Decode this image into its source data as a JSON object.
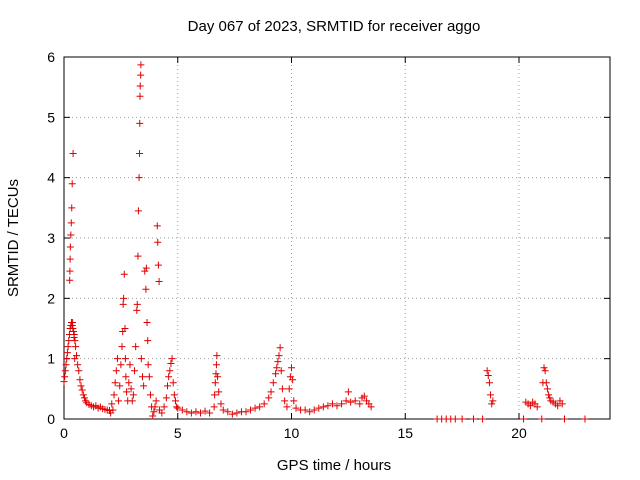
{
  "chart_data": {
    "type": "scatter",
    "title": "Day 067 of 2023, SRMTID for receiver aggo",
    "xlabel": "GPS time / hours",
    "ylabel": "SRMTID / TECUs",
    "xlim": [
      0,
      24
    ],
    "ylim": [
      0,
      6
    ],
    "xticks": [
      0,
      5,
      10,
      15,
      20
    ],
    "yticks": [
      0,
      1,
      2,
      3,
      4,
      5,
      6
    ],
    "grid": true,
    "marker": "+",
    "color": "#e00000",
    "series": [
      {
        "name": "SRMTID",
        "points": [
          [
            0.0,
            0.62
          ],
          [
            0.03,
            0.7
          ],
          [
            0.06,
            0.8
          ],
          [
            0.09,
            0.9
          ],
          [
            0.12,
            1.0
          ],
          [
            0.15,
            1.1
          ],
          [
            0.18,
            1.2
          ],
          [
            0.21,
            1.3
          ],
          [
            0.24,
            1.4
          ],
          [
            0.27,
            1.5
          ],
          [
            0.3,
            1.55
          ],
          [
            0.33,
            1.6
          ],
          [
            0.36,
            1.55
          ],
          [
            0.39,
            1.5
          ],
          [
            0.42,
            1.45
          ],
          [
            0.45,
            1.4
          ],
          [
            0.48,
            1.3
          ],
          [
            0.51,
            1.2
          ],
          [
            0.55,
            1.05
          ],
          [
            0.6,
            0.9
          ],
          [
            0.65,
            0.8
          ],
          [
            0.7,
            0.65
          ],
          [
            0.75,
            0.55
          ],
          [
            0.8,
            0.48
          ],
          [
            0.85,
            0.4
          ],
          [
            0.9,
            0.35
          ],
          [
            0.95,
            0.3
          ],
          [
            1.0,
            0.27
          ],
          [
            1.1,
            0.24
          ],
          [
            1.2,
            0.22
          ],
          [
            1.3,
            0.2
          ],
          [
            1.4,
            0.22
          ],
          [
            1.5,
            0.18
          ],
          [
            1.6,
            0.2
          ],
          [
            1.7,
            0.17
          ],
          [
            1.8,
            0.16
          ],
          [
            1.9,
            0.15
          ],
          [
            2.0,
            0.14
          ],
          [
            0.25,
            2.3
          ],
          [
            0.26,
            2.45
          ],
          [
            0.27,
            2.65
          ],
          [
            0.28,
            2.85
          ],
          [
            0.3,
            3.05
          ],
          [
            0.32,
            3.25
          ],
          [
            0.34,
            3.5
          ],
          [
            0.36,
            3.9
          ],
          [
            0.4,
            4.4
          ],
          [
            0.38,
            1.6
          ],
          [
            0.44,
            1.35
          ],
          [
            0.47,
            1.0
          ],
          [
            2.05,
            0.1
          ],
          [
            2.1,
            0.25
          ],
          [
            2.15,
            0.15
          ],
          [
            2.2,
            0.4
          ],
          [
            2.25,
            0.6
          ],
          [
            2.3,
            0.8
          ],
          [
            2.35,
            1.0
          ],
          [
            2.4,
            0.3
          ],
          [
            2.45,
            0.55
          ],
          [
            2.5,
            0.9
          ],
          [
            2.55,
            1.2
          ],
          [
            2.58,
            1.45
          ],
          [
            2.6,
            1.9
          ],
          [
            2.62,
            2.0
          ],
          [
            2.65,
            2.4
          ],
          [
            2.68,
            1.5
          ],
          [
            2.7,
            1.0
          ],
          [
            2.72,
            0.7
          ],
          [
            2.75,
            0.45
          ],
          [
            2.8,
            0.3
          ],
          [
            2.85,
            0.6
          ],
          [
            2.9,
            0.9
          ],
          [
            2.95,
            0.5
          ],
          [
            3.0,
            0.3
          ],
          [
            3.05,
            0.4
          ],
          [
            3.1,
            0.8
          ],
          [
            3.15,
            1.2
          ],
          [
            3.2,
            1.8
          ],
          [
            3.22,
            1.9
          ],
          [
            3.25,
            2.7
          ],
          [
            3.27,
            3.45
          ],
          [
            3.3,
            4.0
          ],
          [
            3.32,
            4.4
          ],
          [
            3.33,
            4.9
          ],
          [
            3.34,
            5.35
          ],
          [
            3.35,
            5.52
          ],
          [
            3.37,
            5.7
          ],
          [
            3.38,
            5.87
          ],
          [
            3.4,
            1.0
          ],
          [
            3.45,
            0.7
          ],
          [
            3.5,
            0.55
          ],
          [
            3.55,
            2.45
          ],
          [
            3.6,
            2.15
          ],
          [
            3.62,
            2.5
          ],
          [
            3.65,
            1.6
          ],
          [
            3.68,
            1.3
          ],
          [
            3.7,
            0.9
          ],
          [
            3.75,
            0.7
          ],
          [
            3.8,
            0.4
          ],
          [
            3.85,
            0.2
          ],
          [
            3.9,
            0.05
          ],
          [
            3.95,
            0.12
          ],
          [
            4.0,
            0.2
          ],
          [
            4.05,
            0.3
          ],
          [
            4.1,
            3.2
          ],
          [
            4.12,
            2.93
          ],
          [
            4.15,
            2.55
          ],
          [
            4.18,
            2.28
          ],
          [
            4.2,
            0.15
          ],
          [
            4.3,
            0.1
          ],
          [
            4.4,
            0.2
          ],
          [
            4.5,
            0.35
          ],
          [
            4.55,
            0.55
          ],
          [
            4.6,
            0.7
          ],
          [
            4.65,
            0.8
          ],
          [
            4.7,
            0.92
          ],
          [
            4.75,
            1.0
          ],
          [
            4.8,
            0.6
          ],
          [
            4.85,
            0.4
          ],
          [
            4.9,
            0.3
          ],
          [
            4.95,
            0.2
          ],
          [
            5.0,
            0.18
          ],
          [
            5.2,
            0.15
          ],
          [
            5.4,
            0.12
          ],
          [
            5.6,
            0.1
          ],
          [
            5.8,
            0.12
          ],
          [
            6.0,
            0.1
          ],
          [
            6.2,
            0.13
          ],
          [
            6.4,
            0.1
          ],
          [
            6.6,
            0.2
          ],
          [
            6.62,
            0.4
          ],
          [
            6.65,
            0.6
          ],
          [
            6.68,
            0.75
          ],
          [
            6.7,
            0.9
          ],
          [
            6.72,
            1.05
          ],
          [
            6.75,
            0.7
          ],
          [
            6.8,
            0.45
          ],
          [
            6.9,
            0.25
          ],
          [
            7.0,
            0.15
          ],
          [
            7.2,
            0.12
          ],
          [
            7.4,
            0.08
          ],
          [
            7.6,
            0.1
          ],
          [
            7.8,
            0.12
          ],
          [
            8.0,
            0.12
          ],
          [
            8.2,
            0.15
          ],
          [
            8.4,
            0.18
          ],
          [
            8.6,
            0.2
          ],
          [
            8.8,
            0.25
          ],
          [
            9.0,
            0.35
          ],
          [
            9.1,
            0.45
          ],
          [
            9.2,
            0.6
          ],
          [
            9.3,
            0.75
          ],
          [
            9.35,
            0.85
          ],
          [
            9.4,
            0.95
          ],
          [
            9.45,
            1.05
          ],
          [
            9.5,
            1.18
          ],
          [
            9.55,
            0.8
          ],
          [
            9.6,
            0.5
          ],
          [
            9.7,
            0.3
          ],
          [
            9.8,
            0.2
          ],
          [
            9.9,
            0.5
          ],
          [
            9.95,
            0.7
          ],
          [
            10.0,
            0.85
          ],
          [
            10.05,
            0.65
          ],
          [
            10.1,
            0.3
          ],
          [
            10.2,
            0.18
          ],
          [
            10.4,
            0.15
          ],
          [
            10.6,
            0.15
          ],
          [
            10.8,
            0.12
          ],
          [
            11.0,
            0.15
          ],
          [
            11.2,
            0.18
          ],
          [
            11.4,
            0.2
          ],
          [
            11.6,
            0.22
          ],
          [
            11.8,
            0.25
          ],
          [
            12.0,
            0.22
          ],
          [
            12.2,
            0.25
          ],
          [
            12.4,
            0.3
          ],
          [
            12.5,
            0.45
          ],
          [
            12.6,
            0.28
          ],
          [
            12.8,
            0.3
          ],
          [
            13.0,
            0.25
          ],
          [
            13.1,
            0.35
          ],
          [
            13.2,
            0.38
          ],
          [
            13.3,
            0.3
          ],
          [
            13.4,
            0.25
          ],
          [
            13.5,
            0.2
          ],
          [
            16.4,
            0.0
          ],
          [
            16.6,
            0.0
          ],
          [
            16.8,
            0.0
          ],
          [
            17.0,
            0.0
          ],
          [
            17.2,
            0.0
          ],
          [
            17.5,
            0.0
          ],
          [
            18.0,
            0.0
          ],
          [
            18.4,
            0.0
          ],
          [
            18.6,
            0.8
          ],
          [
            18.65,
            0.72
          ],
          [
            18.7,
            0.6
          ],
          [
            18.75,
            0.4
          ],
          [
            18.8,
            0.25
          ],
          [
            18.85,
            0.3
          ],
          [
            20.2,
            0.0
          ],
          [
            20.3,
            0.28
          ],
          [
            20.4,
            0.25
          ],
          [
            20.5,
            0.22
          ],
          [
            20.6,
            0.28
          ],
          [
            20.7,
            0.25
          ],
          [
            20.8,
            0.2
          ],
          [
            21.0,
            0.0
          ],
          [
            21.05,
            0.6
          ],
          [
            21.1,
            0.85
          ],
          [
            21.15,
            0.8
          ],
          [
            21.2,
            0.6
          ],
          [
            21.25,
            0.5
          ],
          [
            21.3,
            0.4
          ],
          [
            21.35,
            0.35
          ],
          [
            21.4,
            0.3
          ],
          [
            21.5,
            0.28
          ],
          [
            21.6,
            0.25
          ],
          [
            21.7,
            0.22
          ],
          [
            21.8,
            0.3
          ],
          [
            21.9,
            0.25
          ],
          [
            22.0,
            0.0
          ],
          [
            22.9,
            0.0
          ]
        ]
      }
    ]
  }
}
